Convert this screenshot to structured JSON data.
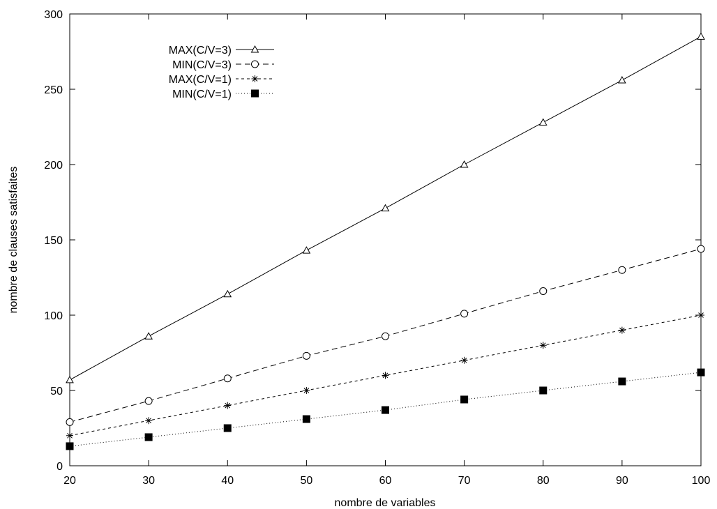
{
  "chart_data": {
    "type": "line",
    "title": "",
    "xlabel": "nombre de variables",
    "ylabel": "nombre de clauses satisfaites",
    "xlim": [
      20,
      100
    ],
    "ylim": [
      0,
      300
    ],
    "xticks": [
      20,
      30,
      40,
      50,
      60,
      70,
      80,
      90,
      100
    ],
    "yticks": [
      0,
      50,
      100,
      150,
      200,
      250,
      300
    ],
    "grid": false,
    "legend_position": "top-left",
    "x": [
      20,
      30,
      40,
      50,
      60,
      70,
      80,
      90,
      100
    ],
    "series": [
      {
        "name": "MAX(C/V=3)",
        "values": [
          57,
          86,
          114,
          143,
          171,
          200,
          228,
          256,
          285
        ],
        "marker": "triangle",
        "dash": "solid",
        "color": "#000000"
      },
      {
        "name": "MIN(C/V=3)",
        "values": [
          29,
          43,
          58,
          73,
          86,
          101,
          116,
          130,
          144
        ],
        "marker": "circle",
        "dash": "dashed",
        "color": "#000000"
      },
      {
        "name": "MAX(C/V=1)",
        "values": [
          20,
          30,
          40,
          50,
          60,
          70,
          80,
          90,
          100
        ],
        "marker": "asterisk",
        "dash": "short-dashed",
        "color": "#000000"
      },
      {
        "name": "MIN(C/V=1)",
        "values": [
          13,
          19,
          25,
          31,
          37,
          44,
          50,
          56,
          62
        ],
        "marker": "filled-square",
        "dash": "dotted",
        "color": "#000000"
      }
    ]
  }
}
